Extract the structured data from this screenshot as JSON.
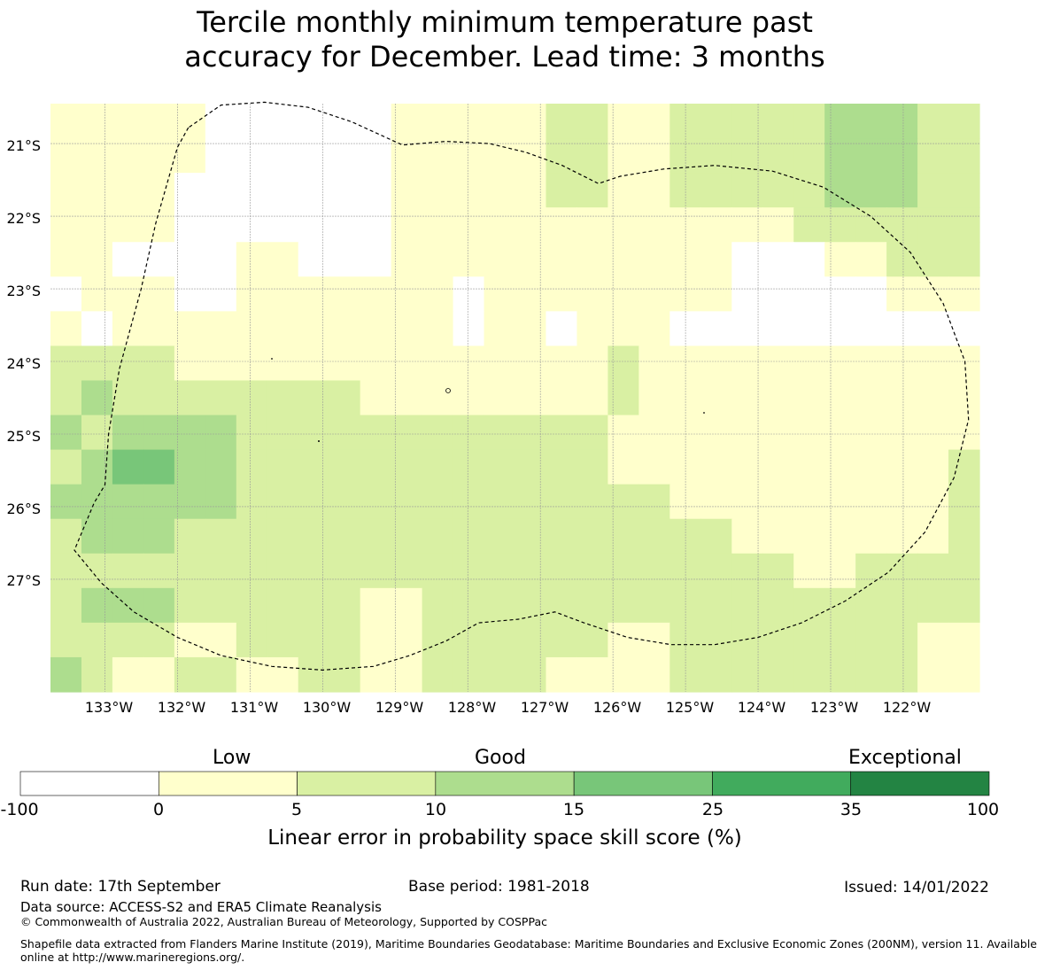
{
  "title": {
    "line1": "Tercile monthly minimum temperature past",
    "line2": "accuracy for December. Lead time: 3 months"
  },
  "colors": {
    "bins": [
      "#ffffff",
      "#ffffcc",
      "#d9f0a3",
      "#addd8e",
      "#78c679",
      "#41ab5d",
      "#238443"
    ],
    "eez_outline": "#000000",
    "gridline": "#999999"
  },
  "map": {
    "lat_labels": [
      "21°S",
      "22°S",
      "23°S",
      "24°S",
      "25°S",
      "26°S",
      "27°S"
    ],
    "lon_labels": [
      "133°W",
      "132°W",
      "131°W",
      "130°W",
      "129°W",
      "128°W",
      "127°W",
      "126°W",
      "125°W",
      "124°W",
      "123°W",
      "122°W"
    ],
    "grid_extent": {
      "lon_west": -133.75,
      "lon_east": -120.95,
      "lat_north": -20.45,
      "lat_south": -28.55
    },
    "cell_size_deg": 0.833,
    "skill_bins": [
      [
        1,
        1,
        1,
        1,
        1,
        0,
        0,
        0,
        0,
        0,
        0,
        1,
        1,
        1,
        1,
        1,
        2,
        2,
        1,
        1,
        2,
        2,
        2,
        2,
        2,
        3,
        3,
        3,
        2,
        2
      ],
      [
        1,
        1,
        1,
        1,
        1,
        0,
        0,
        0,
        0,
        0,
        0,
        1,
        1,
        1,
        1,
        1,
        2,
        2,
        1,
        1,
        2,
        2,
        2,
        2,
        2,
        3,
        3,
        3,
        2,
        2
      ],
      [
        1,
        1,
        1,
        1,
        0,
        0,
        0,
        0,
        0,
        0,
        0,
        1,
        1,
        1,
        1,
        1,
        2,
        2,
        1,
        1,
        2,
        2,
        2,
        2,
        2,
        3,
        3,
        3,
        2,
        2
      ],
      [
        1,
        1,
        1,
        1,
        0,
        0,
        0,
        0,
        0,
        0,
        0,
        1,
        1,
        1,
        1,
        1,
        1,
        1,
        1,
        1,
        1,
        1,
        1,
        1,
        2,
        2,
        2,
        2,
        2,
        2
      ],
      [
        1,
        1,
        0,
        0,
        0,
        0,
        1,
        1,
        0,
        0,
        0,
        1,
        1,
        1,
        1,
        1,
        1,
        1,
        1,
        1,
        1,
        1,
        0,
        0,
        0,
        1,
        1,
        2,
        2,
        2
      ],
      [
        0,
        1,
        1,
        1,
        0,
        0,
        1,
        1,
        1,
        1,
        1,
        1,
        1,
        0,
        1,
        1,
        1,
        1,
        1,
        1,
        1,
        1,
        0,
        0,
        0,
        0,
        0,
        1,
        1,
        1
      ],
      [
        1,
        0,
        1,
        1,
        1,
        1,
        1,
        1,
        1,
        1,
        1,
        1,
        1,
        0,
        1,
        1,
        0,
        1,
        1,
        1,
        0,
        0,
        0,
        0,
        0,
        0,
        0,
        0,
        0,
        0
      ],
      [
        2,
        2,
        2,
        2,
        1,
        1,
        1,
        1,
        1,
        1,
        1,
        1,
        1,
        1,
        1,
        1,
        1,
        1,
        2,
        1,
        1,
        1,
        1,
        1,
        1,
        1,
        1,
        1,
        1,
        1
      ],
      [
        2,
        3,
        2,
        2,
        2,
        2,
        2,
        2,
        2,
        2,
        1,
        1,
        1,
        1,
        1,
        1,
        1,
        1,
        2,
        1,
        1,
        1,
        1,
        1,
        1,
        1,
        1,
        1,
        1,
        1
      ],
      [
        3,
        2,
        3,
        3,
        3,
        3,
        2,
        2,
        2,
        2,
        2,
        2,
        2,
        2,
        2,
        2,
        2,
        2,
        1,
        1,
        1,
        1,
        1,
        1,
        1,
        1,
        1,
        1,
        1,
        1
      ],
      [
        2,
        3,
        4,
        4,
        3,
        3,
        2,
        2,
        2,
        2,
        2,
        2,
        2,
        2,
        2,
        2,
        2,
        2,
        1,
        1,
        1,
        1,
        1,
        1,
        1,
        1,
        1,
        1,
        1,
        2
      ],
      [
        3,
        3,
        3,
        3,
        3,
        3,
        2,
        2,
        2,
        2,
        2,
        2,
        2,
        2,
        2,
        2,
        2,
        2,
        2,
        2,
        1,
        1,
        1,
        1,
        1,
        1,
        1,
        1,
        1,
        2
      ],
      [
        2,
        3,
        3,
        3,
        2,
        2,
        2,
        2,
        2,
        2,
        2,
        2,
        2,
        2,
        2,
        2,
        2,
        2,
        2,
        2,
        2,
        2,
        1,
        1,
        1,
        1,
        1,
        1,
        1,
        2
      ],
      [
        2,
        2,
        2,
        2,
        2,
        2,
        2,
        2,
        2,
        2,
        2,
        2,
        2,
        2,
        2,
        2,
        2,
        2,
        2,
        2,
        2,
        2,
        2,
        2,
        1,
        1,
        2,
        2,
        2,
        2
      ],
      [
        2,
        3,
        3,
        3,
        2,
        2,
        2,
        2,
        2,
        2,
        1,
        1,
        2,
        2,
        2,
        2,
        2,
        2,
        2,
        2,
        2,
        2,
        2,
        2,
        2,
        2,
        2,
        2,
        2,
        2
      ],
      [
        2,
        2,
        2,
        2,
        1,
        1,
        2,
        2,
        2,
        2,
        1,
        1,
        2,
        2,
        2,
        2,
        2,
        2,
        1,
        1,
        2,
        2,
        2,
        2,
        2,
        2,
        2,
        2,
        1,
        1
      ],
      [
        3,
        2,
        1,
        1,
        2,
        2,
        1,
        1,
        2,
        2,
        1,
        1,
        2,
        2,
        2,
        2,
        1,
        1,
        1,
        1,
        2,
        2,
        2,
        2,
        2,
        2,
        2,
        2,
        1,
        1
      ]
    ],
    "eez_boundary": [
      [
        -131.85,
        -20.78
      ],
      [
        -132.0,
        -21.05
      ],
      [
        -132.3,
        -22.1
      ],
      [
        -132.5,
        -23.0
      ],
      [
        -132.8,
        -24.1
      ],
      [
        -132.95,
        -25.0
      ],
      [
        -133.0,
        -25.7
      ],
      [
        -133.15,
        -25.95
      ],
      [
        -133.42,
        -26.6
      ],
      [
        -133.05,
        -27.05
      ],
      [
        -132.6,
        -27.45
      ],
      [
        -132.0,
        -27.8
      ],
      [
        -131.4,
        -28.05
      ],
      [
        -130.7,
        -28.2
      ],
      [
        -130.0,
        -28.25
      ],
      [
        -129.3,
        -28.2
      ],
      [
        -128.8,
        -28.05
      ],
      [
        -128.3,
        -27.85
      ],
      [
        -127.85,
        -27.6
      ],
      [
        -127.3,
        -27.55
      ],
      [
        -126.8,
        -27.45
      ],
      [
        -126.4,
        -27.6
      ],
      [
        -125.8,
        -27.8
      ],
      [
        -125.2,
        -27.9
      ],
      [
        -124.6,
        -27.9
      ],
      [
        -124.0,
        -27.8
      ],
      [
        -123.4,
        -27.6
      ],
      [
        -122.8,
        -27.3
      ],
      [
        -122.2,
        -26.9
      ],
      [
        -121.7,
        -26.35
      ],
      [
        -121.3,
        -25.6
      ],
      [
        -121.1,
        -24.8
      ],
      [
        -121.15,
        -24.0
      ],
      [
        -121.45,
        -23.2
      ],
      [
        -121.9,
        -22.5
      ],
      [
        -122.45,
        -22.0
      ],
      [
        -123.1,
        -21.6
      ],
      [
        -123.8,
        -21.38
      ],
      [
        -124.6,
        -21.3
      ],
      [
        -125.3,
        -21.35
      ],
      [
        -125.9,
        -21.45
      ],
      [
        -126.2,
        -21.55
      ],
      [
        -126.7,
        -21.3
      ],
      [
        -127.2,
        -21.12
      ],
      [
        -127.7,
        -21.0
      ],
      [
        -128.3,
        -20.97
      ],
      [
        -128.9,
        -21.02
      ],
      [
        -129.6,
        -20.7
      ],
      [
        -130.2,
        -20.5
      ],
      [
        -130.8,
        -20.43
      ],
      [
        -131.4,
        -20.47
      ],
      [
        -131.85,
        -20.78
      ]
    ]
  },
  "colorbar": {
    "categories": [
      "Low",
      "Good",
      "Exceptional"
    ],
    "ticks": [
      "-100",
      "0",
      "5",
      "10",
      "15",
      "25",
      "35",
      "100"
    ],
    "title": "Linear error in probability space skill score (%)"
  },
  "footer": {
    "run_date": "Run date: 17th September",
    "base_period": "Base period: 1981-2018",
    "issued": "Issued: 14/01/2022",
    "data_source": "Data source: ACCESS-S2 and ERA5 Climate Reanalysis",
    "copyright": "© Commonwealth of Australia 2022, Australian Bureau of Meteorology, Supported by COSPPac",
    "shapefile_line1": "Shapefile data extracted from Flanders Marine Institute (2019), Maritime Boundaries Geodatabase: Maritime Boundaries and Exclusive Economic Zones (200NM), version 11. Available",
    "shapefile_line2": "online at http://www.marineregions.org/."
  }
}
